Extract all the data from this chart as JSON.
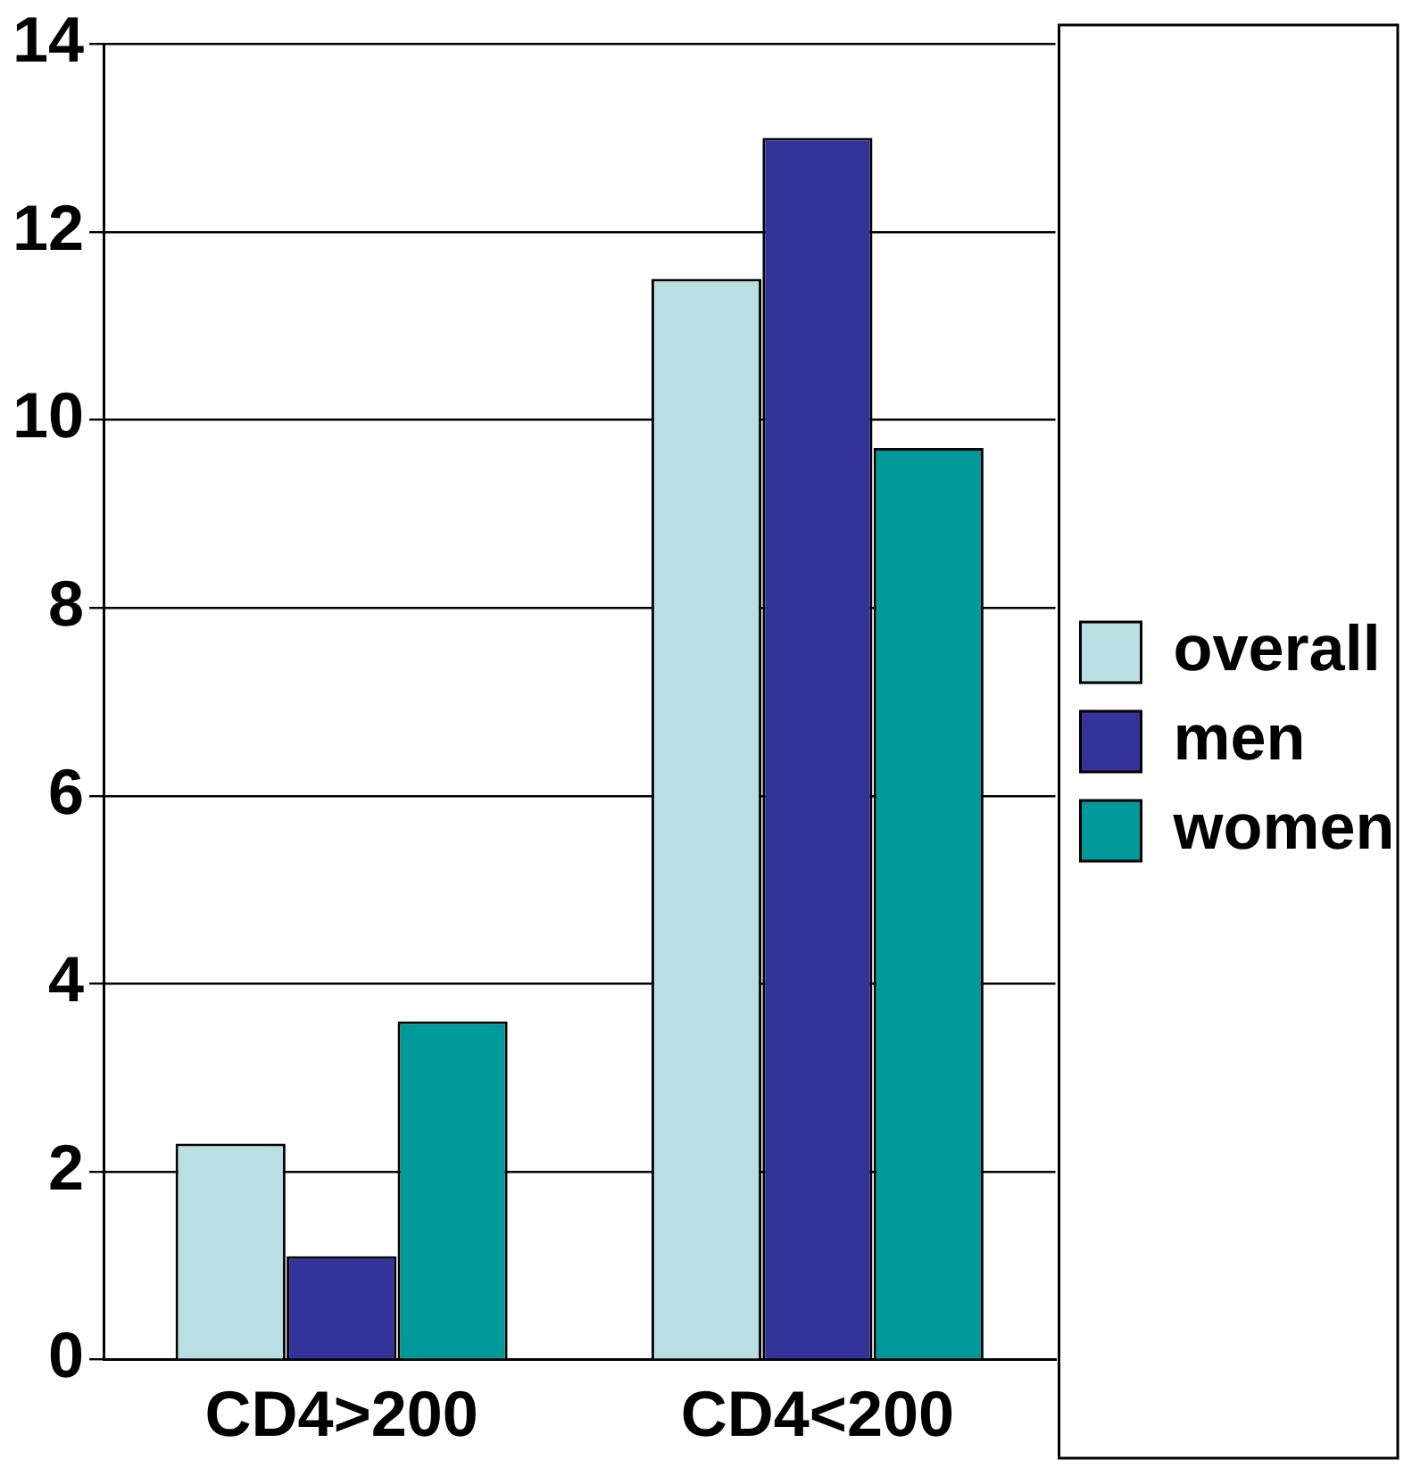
{
  "chart_data": {
    "type": "bar",
    "categories": [
      "CD4>200",
      "CD4<200"
    ],
    "series": [
      {
        "name": "overall",
        "color": "#b9dfe3",
        "values": [
          2.3,
          11.5
        ]
      },
      {
        "name": "men",
        "color": "#333399",
        "values": [
          1.1,
          13
        ]
      },
      {
        "name": "women",
        "color": "#009999",
        "values": [
          3.6,
          9.7
        ]
      }
    ],
    "ylim": [
      0,
      14
    ],
    "yticks": [
      0,
      2,
      4,
      6,
      8,
      10,
      12,
      14
    ],
    "grid": "y",
    "legend": "right"
  }
}
